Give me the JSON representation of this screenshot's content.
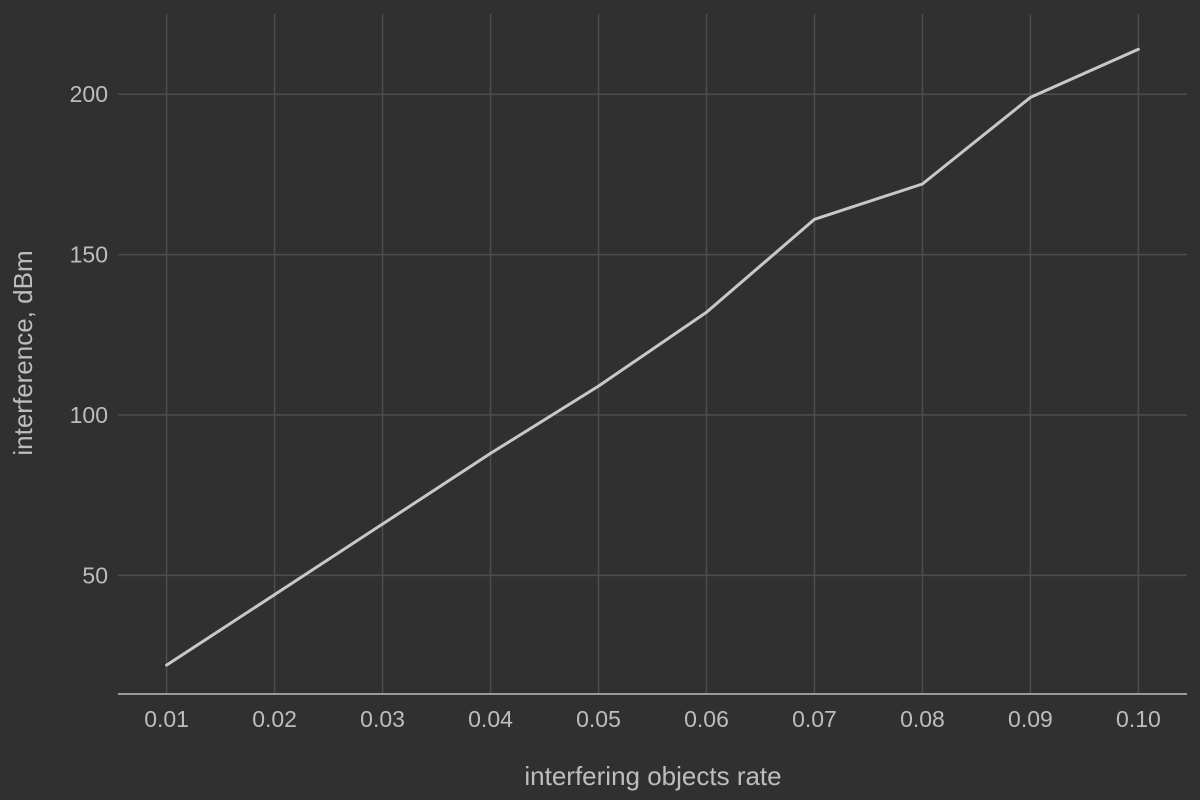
{
  "chart_data": {
    "type": "line",
    "xlabel": "interfering objects rate",
    "ylabel": "interference, dBm",
    "x": [
      0.01,
      0.02,
      0.03,
      0.04,
      0.05,
      0.06,
      0.07,
      0.08,
      0.09,
      0.1
    ],
    "x_tick_labels": [
      "0.01",
      "0.02",
      "0.03",
      "0.04",
      "0.05",
      "0.06",
      "0.07",
      "0.08",
      "0.09",
      "0.10"
    ],
    "y_ticks": [
      50,
      100,
      150,
      200
    ],
    "y_tick_labels": [
      "50",
      "100",
      "150",
      "200"
    ],
    "series": [
      {
        "values": [
          22,
          44,
          66,
          88,
          109,
          132,
          161,
          172,
          199,
          214
        ],
        "color": "#c8c8c8"
      }
    ],
    "xlim": [
      0.0055,
      0.1045
    ],
    "ylim": [
      13,
      225
    ],
    "grid": true,
    "legend": "none",
    "colors": {
      "background": "#303030",
      "grid": "#4d4d4d",
      "text": "#bdbdbd",
      "axis": "#bdbdbd"
    }
  }
}
